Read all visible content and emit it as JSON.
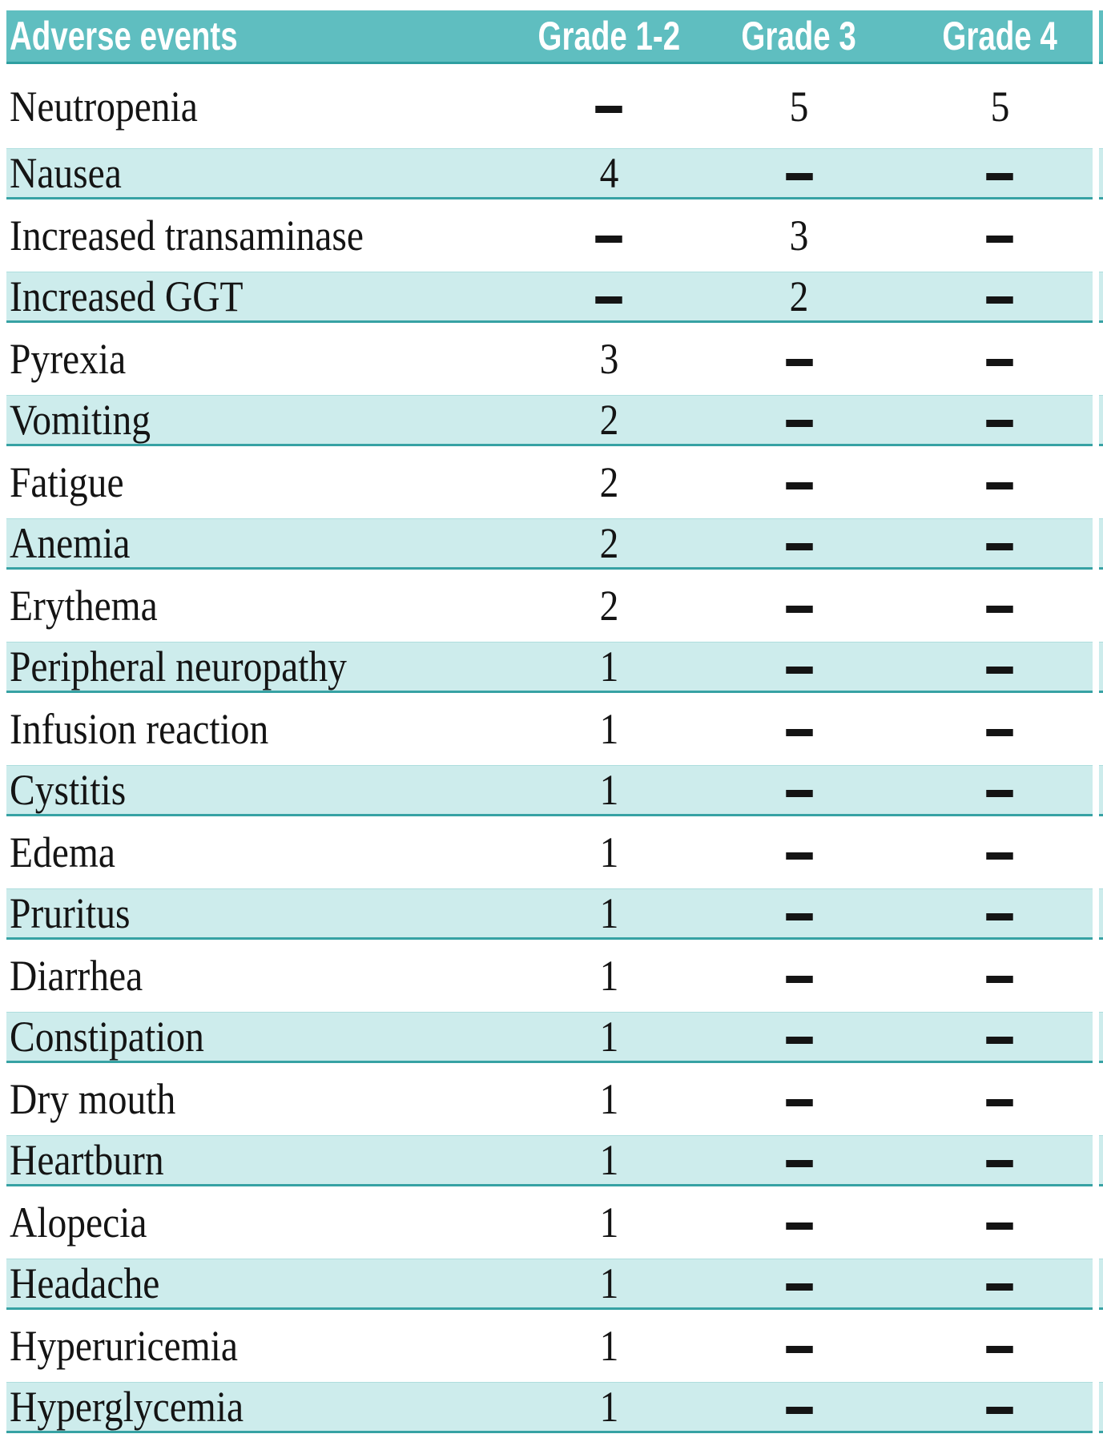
{
  "colors": {
    "header_bg": "#5fbec0",
    "header_text": "#ffffff",
    "row_highlight_bg": "#cdecec",
    "row_divider": "#37a2a4",
    "header_divider": "#2f9fa1",
    "row_hairline": "#aedede",
    "text": "#141414",
    "page_bg": "#ffffff"
  },
  "table": {
    "columns": [
      "Adverse events",
      "Grade 1-2",
      "Grade 3",
      "Grade 4"
    ],
    "rows": [
      {
        "event": "Neutropenia",
        "grade_1_2": "–",
        "grade_3": "5",
        "grade_4": "5"
      },
      {
        "event": "Nausea",
        "grade_1_2": "4",
        "grade_3": "–",
        "grade_4": "–"
      },
      {
        "event": "Increased transaminase",
        "grade_1_2": "–",
        "grade_3": "3",
        "grade_4": "–"
      },
      {
        "event": "Increased GGT",
        "grade_1_2": "–",
        "grade_3": "2",
        "grade_4": "–"
      },
      {
        "event": "Pyrexia",
        "grade_1_2": "3",
        "grade_3": "–",
        "grade_4": "–"
      },
      {
        "event": "Vomiting",
        "grade_1_2": "2",
        "grade_3": "–",
        "grade_4": "–"
      },
      {
        "event": "Fatigue",
        "grade_1_2": "2",
        "grade_3": "–",
        "grade_4": "–"
      },
      {
        "event": "Anemia",
        "grade_1_2": "2",
        "grade_3": "–",
        "grade_4": "–"
      },
      {
        "event": "Erythema",
        "grade_1_2": "2",
        "grade_3": "–",
        "grade_4": "–"
      },
      {
        "event": "Peripheral neuropathy",
        "grade_1_2": "1",
        "grade_3": "–",
        "grade_4": "–"
      },
      {
        "event": "Infusion reaction",
        "grade_1_2": "1",
        "grade_3": "–",
        "grade_4": "–"
      },
      {
        "event": "Cystitis",
        "grade_1_2": "1",
        "grade_3": "–",
        "grade_4": "–"
      },
      {
        "event": "Edema",
        "grade_1_2": "1",
        "grade_3": "–",
        "grade_4": "–"
      },
      {
        "event": "Pruritus",
        "grade_1_2": "1",
        "grade_3": "–",
        "grade_4": "–"
      },
      {
        "event": "Diarrhea",
        "grade_1_2": "1",
        "grade_3": "–",
        "grade_4": "–"
      },
      {
        "event": "Constipation",
        "grade_1_2": "1",
        "grade_3": "–",
        "grade_4": "–"
      },
      {
        "event": "Dry mouth",
        "grade_1_2": "1",
        "grade_3": "–",
        "grade_4": "–"
      },
      {
        "event": "Heartburn",
        "grade_1_2": "1",
        "grade_3": "–",
        "grade_4": "–"
      },
      {
        "event": "Alopecia",
        "grade_1_2": "1",
        "grade_3": "–",
        "grade_4": "–"
      },
      {
        "event": "Headache",
        "grade_1_2": "1",
        "grade_3": "–",
        "grade_4": "–"
      },
      {
        "event": "Hyperuricemia",
        "grade_1_2": "1",
        "grade_3": "–",
        "grade_4": "–"
      },
      {
        "event": "Hyperglycemia",
        "grade_1_2": "1",
        "grade_3": "–",
        "grade_4": "–"
      }
    ]
  }
}
